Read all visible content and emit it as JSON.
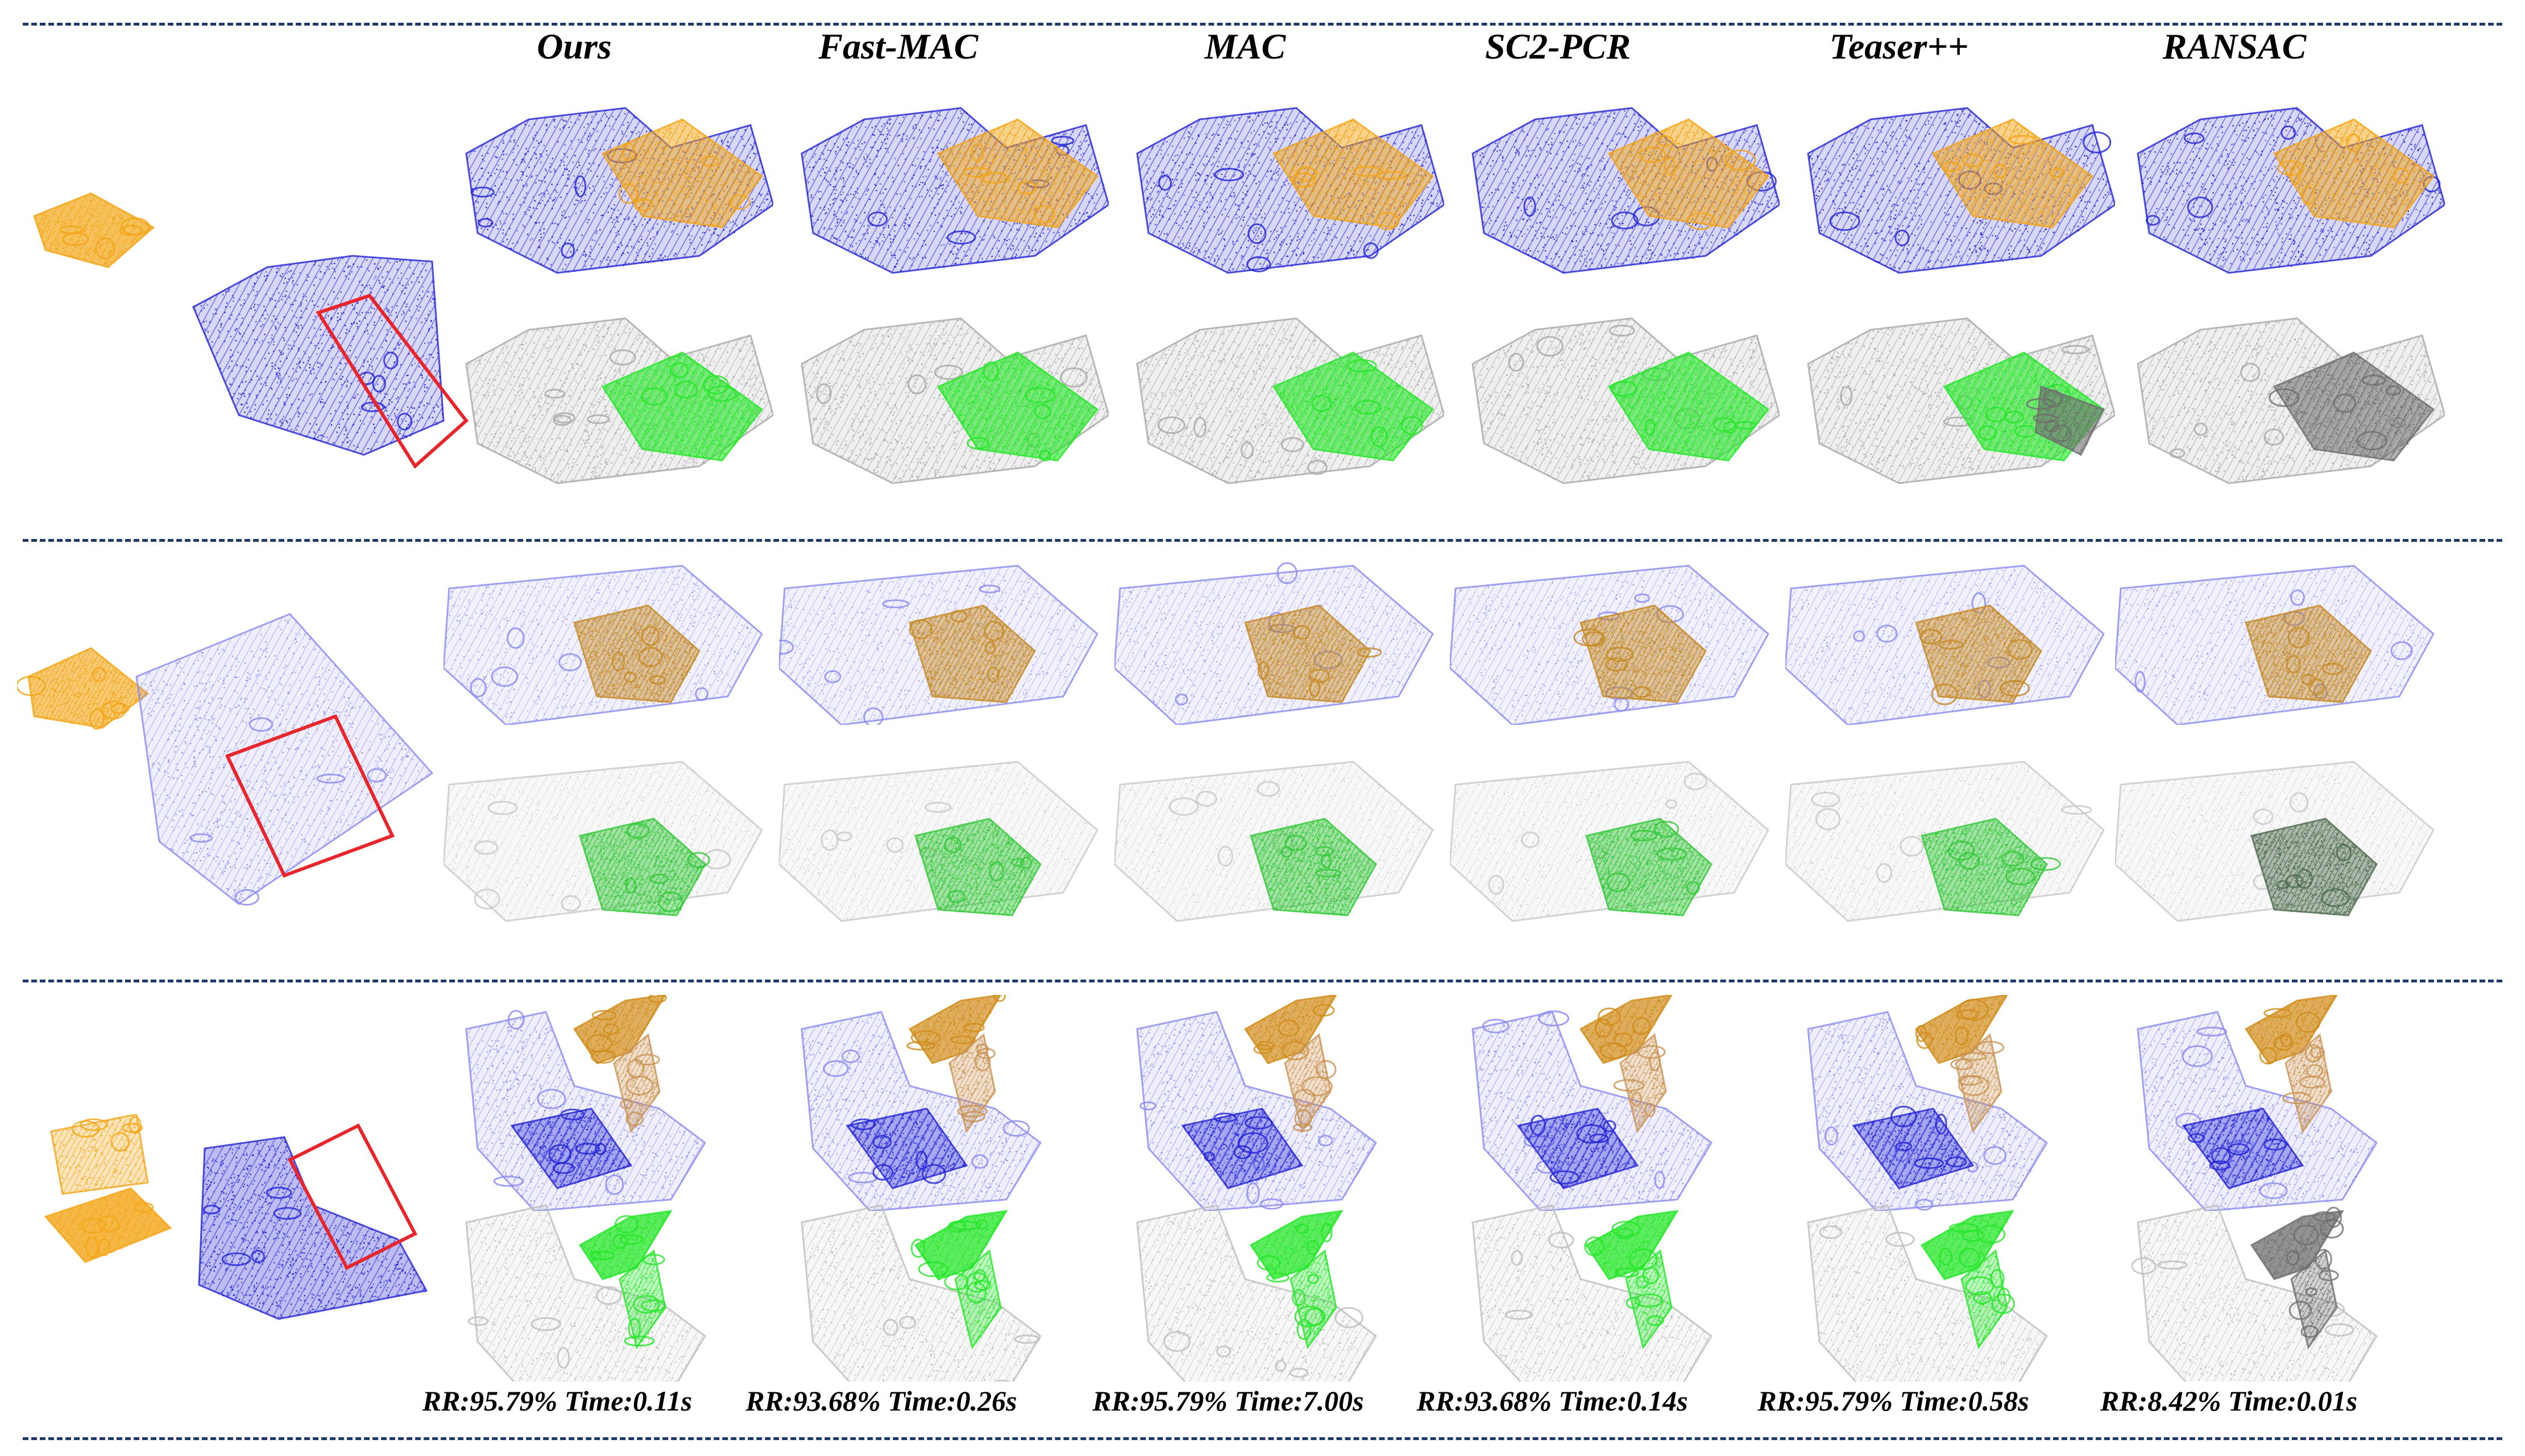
{
  "methods": [
    "Ours",
    "Fast-MAC",
    "MAC",
    "SC2-PCR",
    "Teaser++",
    "RANSAC"
  ],
  "metrics": [
    "RR:95.79% Time:0.11s",
    "RR:93.68% Time:0.26s",
    "RR:95.79% Time:7.00s",
    "RR:93.68% Time:0.14s",
    "RR:95.79% Time:0.58s",
    "RR:8.42% Time:0.01s"
  ],
  "colors": {
    "source": "#f2a516",
    "target": "#2323d6",
    "target_light": "#8a8af0",
    "correct": "#27e62a",
    "background": "#a8a8a8",
    "incorrect": "#6e6e6e",
    "highlight_box": "#e8252b",
    "separator": "#1f3a68"
  },
  "results": [
    [
      "correct",
      "correct",
      "correct",
      "correct",
      "partial",
      "incorrect"
    ],
    [
      "correct",
      "correct",
      "correct",
      "correct",
      "correct",
      "incorrect"
    ],
    [
      "correct",
      "correct",
      "correct",
      "correct",
      "correct",
      "incorrect"
    ]
  ]
}
